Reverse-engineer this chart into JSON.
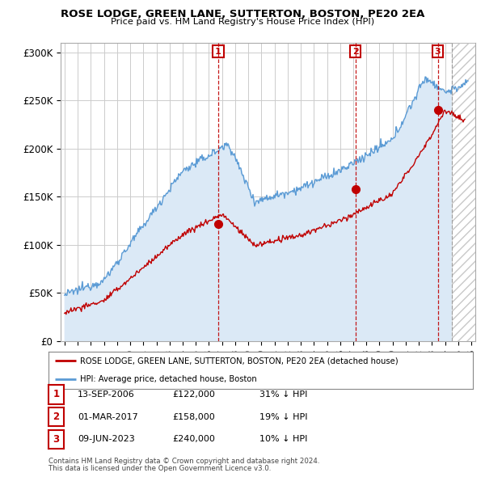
{
  "title": "ROSE LODGE, GREEN LANE, SUTTERTON, BOSTON, PE20 2EA",
  "subtitle": "Price paid vs. HM Land Registry's House Price Index (HPI)",
  "hpi_label": "HPI: Average price, detached house, Boston",
  "property_label": "ROSE LODGE, GREEN LANE, SUTTERTON, BOSTON, PE20 2EA (detached house)",
  "ylabel_ticks": [
    "£0",
    "£50K",
    "£100K",
    "£150K",
    "£200K",
    "£250K",
    "£300K"
  ],
  "ytick_vals": [
    0,
    50000,
    100000,
    150000,
    200000,
    250000,
    300000
  ],
  "ylim": [
    0,
    310000
  ],
  "xlim_start": 1994.7,
  "xlim_end": 2026.3,
  "transactions": [
    {
      "date_str": "13-SEP-2006",
      "date_num": 2006.71,
      "price": 122000,
      "pct": "31%",
      "label": "1"
    },
    {
      "date_str": "01-MAR-2017",
      "date_num": 2017.17,
      "price": 158000,
      "pct": "19%",
      "label": "2"
    },
    {
      "date_str": "09-JUN-2023",
      "date_num": 2023.44,
      "price": 240000,
      "pct": "10%",
      "label": "3"
    }
  ],
  "footnote1": "Contains HM Land Registry data © Crown copyright and database right 2024.",
  "footnote2": "This data is licensed under the Open Government Licence v3.0.",
  "hpi_color": "#5b9bd5",
  "hpi_fill_color": "#dbe9f6",
  "price_color": "#c00000",
  "marker_color": "#c00000",
  "marker_box_color": "#c00000",
  "grid_color": "#cccccc",
  "background_color": "#ffffff",
  "hatch_color": "#bbbbbb",
  "fig_width": 6.0,
  "fig_height": 5.9
}
